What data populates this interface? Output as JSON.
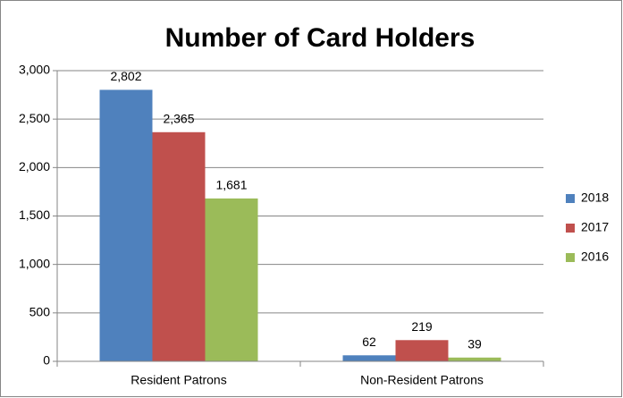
{
  "chart_data": {
    "type": "bar",
    "title": "Number of Card Holders",
    "categories": [
      "Resident Patrons",
      "Non-Resident Patrons"
    ],
    "series": [
      {
        "name": "2018",
        "color": "#4f81bd",
        "values": [
          2802,
          62
        ],
        "value_labels": [
          "2,802",
          "62"
        ]
      },
      {
        "name": "2017",
        "color": "#c0504d",
        "values": [
          2365,
          219
        ],
        "value_labels": [
          "2,365",
          "219"
        ]
      },
      {
        "name": "2016",
        "color": "#9bbb59",
        "values": [
          1681,
          39
        ],
        "value_labels": [
          "1,681",
          "39"
        ]
      }
    ],
    "ylim": [
      0,
      3000
    ],
    "yticks": [
      0,
      500,
      {
        "value": 1000,
        "label": "1,000"
      },
      {
        "value": 1500,
        "label": "1,500"
      },
      {
        "value": 2000,
        "label": "2,000"
      },
      {
        "value": 2500,
        "label": "2,500"
      },
      {
        "value": 3000,
        "label": "3,000"
      }
    ],
    "grid": true,
    "legend": "right"
  }
}
